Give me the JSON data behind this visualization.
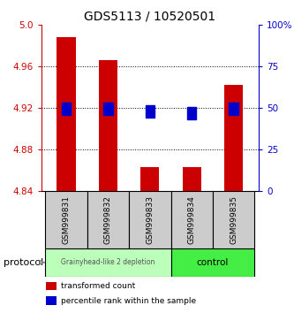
{
  "title": "GDS5113 / 10520501",
  "samples": [
    "GSM999831",
    "GSM999832",
    "GSM999833",
    "GSM999834",
    "GSM999835"
  ],
  "bar_bottom": 4.84,
  "bar_top": [
    4.988,
    4.966,
    4.863,
    4.863,
    4.942
  ],
  "blue_y": [
    4.915,
    4.915,
    4.912,
    4.911,
    4.915
  ],
  "ylim": [
    4.84,
    5.0
  ],
  "yticks_left": [
    4.84,
    4.88,
    4.92,
    4.96,
    5.0
  ],
  "yticks_right_vals": [
    0,
    25,
    50,
    75,
    100
  ],
  "yticks_right_labels": [
    "0",
    "25",
    "50",
    "75",
    "100%"
  ],
  "left_color": "#cc0000",
  "right_color": "#0000cc",
  "bar_color": "#cc0000",
  "blue_color": "#0000cc",
  "group1_label": "Grainyhead-like 2 depletion",
  "group2_label": "control",
  "group1_color": "#bbffbb",
  "group2_color": "#44ee44",
  "group1_indices": [
    0,
    1,
    2
  ],
  "group2_indices": [
    3,
    4
  ],
  "protocol_label": "protocol",
  "legend_red_label": "transformed count",
  "legend_blue_label": "percentile rank within the sample",
  "bar_width": 0.45,
  "bg_color": "#ffffff",
  "sample_bg_color": "#cccccc",
  "figsize": [
    3.33,
    3.54
  ],
  "dpi": 100
}
